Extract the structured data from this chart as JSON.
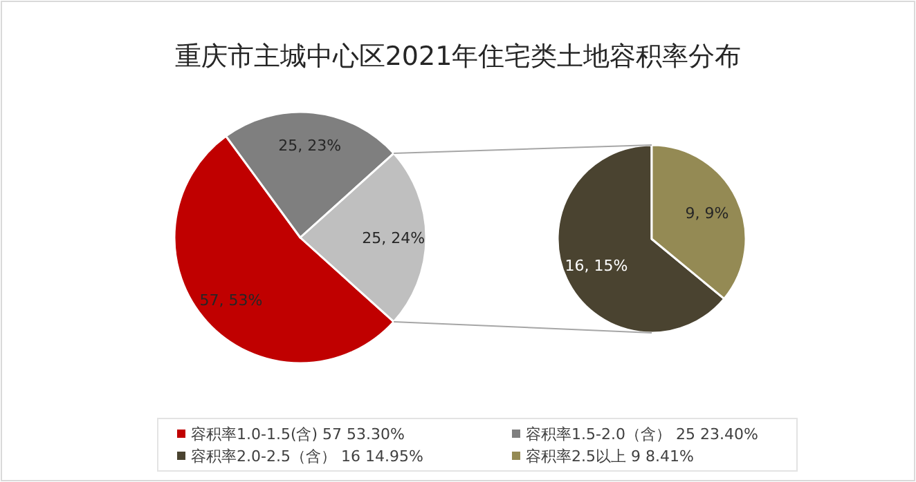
{
  "chart_data": [
    {
      "type": "pie",
      "title": "重庆市主城中心区2021年住宅类土地容积率分布",
      "categories": [
        "容积率1.0-1.5(含)  57 53.30%",
        "容积率1.5-2.0（含） 25 23.40%",
        null
      ],
      "values": [
        57,
        25,
        25
      ],
      "colors": [
        "#c00000",
        "#7f7f7f",
        "#bfbfbf"
      ],
      "value_labels": [
        "57, 53%",
        "25, 23%",
        "25, 24%"
      ],
      "legend": "bottom"
    },
    {
      "type": "pie",
      "categories": [
        "容积率2.0-2.5（含） 16 14.95%",
        "容积率2.5以上 9 8.41%"
      ],
      "values": [
        16,
        9
      ],
      "colors": [
        "#4a4330",
        "#948a54"
      ],
      "value_labels": [
        "16, 15%",
        "9, 9%"
      ],
      "legend": "bottom"
    }
  ]
}
